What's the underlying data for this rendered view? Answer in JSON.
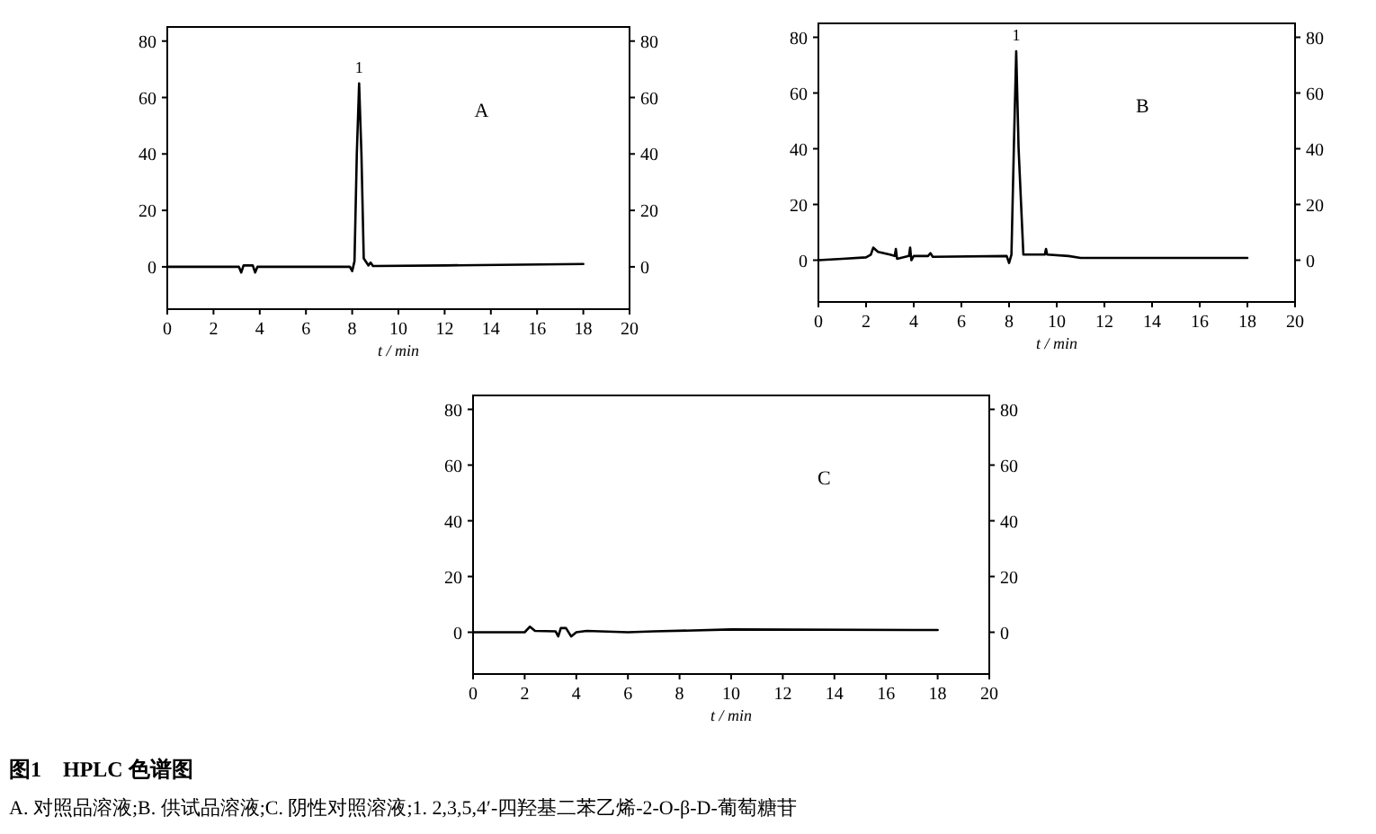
{
  "chart_data": [
    {
      "type": "line",
      "title": "A",
      "xlabel": "t / min",
      "xlim": [
        0,
        20
      ],
      "xticks": [
        0,
        2,
        4,
        6,
        8,
        10,
        12,
        14,
        16,
        18,
        20
      ],
      "ylim": [
        -15,
        85
      ],
      "yticks": [
        0,
        20,
        40,
        60,
        80
      ],
      "y2lim": [
        -15,
        85
      ],
      "y2ticks": [
        0,
        20,
        40,
        60,
        80
      ],
      "annotations": [
        {
          "text": "1",
          "x": 8.3,
          "y": 65
        }
      ],
      "series": [
        {
          "color": "#000000",
          "x": [
            0,
            3.1,
            3.2,
            3.3,
            3.7,
            3.8,
            3.9,
            7.9,
            8.0,
            8.1,
            8.2,
            8.3,
            8.4,
            8.5,
            8.7,
            8.8,
            8.9,
            12,
            18
          ],
          "values": [
            0,
            0,
            -2,
            0.5,
            0.5,
            -2,
            0,
            0,
            -1.5,
            2,
            40,
            65,
            40,
            3,
            0.5,
            1.5,
            0.3,
            0.5,
            1
          ]
        }
      ]
    },
    {
      "type": "line",
      "title": "B",
      "xlabel": "t / min",
      "xlim": [
        0,
        20
      ],
      "xticks": [
        0,
        2,
        4,
        6,
        8,
        10,
        12,
        14,
        16,
        18,
        20
      ],
      "ylim": [
        -15,
        85
      ],
      "yticks": [
        0,
        20,
        40,
        60,
        80
      ],
      "y2lim": [
        -15,
        85
      ],
      "y2ticks": [
        0,
        20,
        40,
        60,
        80
      ],
      "annotations": [
        {
          "text": "1",
          "x": 8.3,
          "y": 75
        }
      ],
      "series": [
        {
          "color": "#000000",
          "x": [
            0,
            1,
            2,
            2.2,
            2.3,
            2.5,
            3,
            3.2,
            3.25,
            3.3,
            3.8,
            3.85,
            3.9,
            4.0,
            4.6,
            4.7,
            4.8,
            7.9,
            8.0,
            8.1,
            8.2,
            8.3,
            8.4,
            8.6,
            9.5,
            9.55,
            9.6,
            10.5,
            11,
            18
          ],
          "values": [
            0,
            0.5,
            1,
            2,
            4.5,
            3,
            2,
            1.5,
            4,
            0.5,
            1.5,
            4.5,
            0,
            1.5,
            1.5,
            2.5,
            1.2,
            1.5,
            -1,
            2,
            40,
            75,
            40,
            2,
            2,
            4,
            2,
            1.5,
            0.8,
            0.8
          ]
        }
      ]
    },
    {
      "type": "line",
      "title": "C",
      "xlabel": "t / min",
      "xlim": [
        0,
        20
      ],
      "xticks": [
        0,
        2,
        4,
        6,
        8,
        10,
        12,
        14,
        16,
        18,
        20
      ],
      "ylim": [
        -15,
        85
      ],
      "yticks": [
        0,
        20,
        40,
        60,
        80
      ],
      "y2lim": [
        -15,
        85
      ],
      "y2ticks": [
        0,
        20,
        40,
        60,
        80
      ],
      "annotations": [
        "图1　HPLC 色谱图",
        "A. 对照品溶液;B. 供试品溶液;C. 阴性对照溶液;1. 2,3,5,4′-四羟基二苯乙烯-2-O-β-D-葡萄糖苷"
      ],
      "series": [
        {
          "color": "#000000",
          "x": [
            0,
            2,
            2.2,
            2.4,
            3.2,
            3.3,
            3.4,
            3.6,
            3.8,
            4,
            4.4,
            6,
            7,
            10,
            18
          ],
          "values": [
            0,
            0,
            2,
            0.5,
            0.3,
            -1.5,
            1.5,
            1.5,
            -1.5,
            0,
            0.5,
            0,
            0.3,
            1,
            0.8
          ]
        }
      ]
    }
  ]
}
